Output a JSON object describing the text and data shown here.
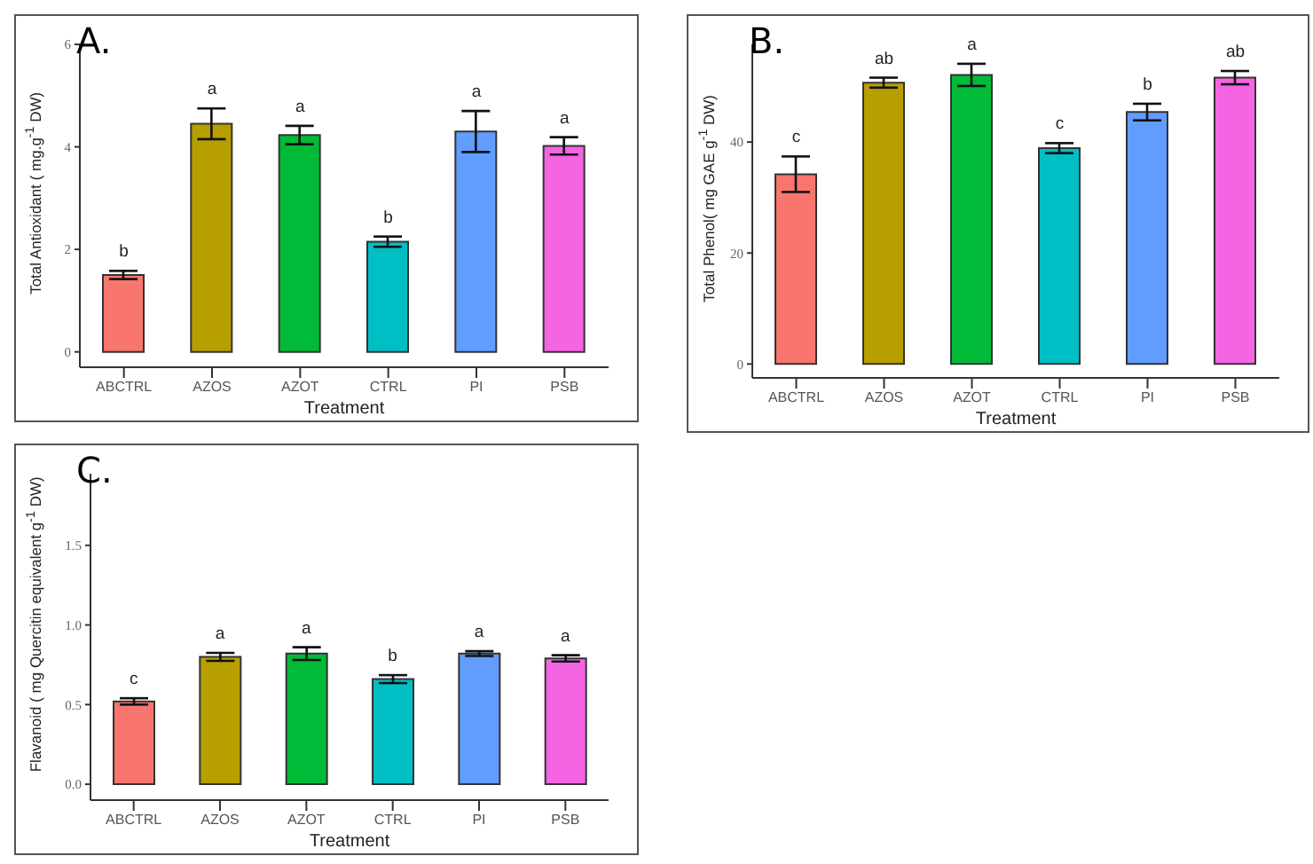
{
  "chart_data": [
    {
      "type": "bar",
      "title": "A.",
      "xlabel": "Treatment",
      "ylabel": "Total Antioxidant ( mg.g$^{-1}$ DW)",
      "categories": [
        "ABCTRL",
        "AZOS",
        "AZOT",
        "CTRL",
        "PI",
        "PSB"
      ],
      "values": [
        1.5,
        4.45,
        4.23,
        2.15,
        4.3,
        4.02
      ],
      "errors": [
        0.08,
        0.3,
        0.18,
        0.1,
        0.4,
        0.17
      ],
      "colors": [
        "#f8766d",
        "#b79f00",
        "#00ba38",
        "#00bfc4",
        "#619cff",
        "#f564e3"
      ],
      "ylim": [
        -0.3,
        6
      ],
      "yticks": [
        0,
        2,
        4,
        6
      ],
      "annotations": [
        "b",
        "a",
        "a",
        "b",
        "a",
        "a"
      ]
    },
    {
      "type": "bar",
      "title": "B.",
      "xlabel": "Treatment",
      "ylabel": "Total Phenol( mg GAE g$^{-1}$ DW)",
      "categories": [
        "ABCTRL",
        "AZOS",
        "AZOT",
        "CTRL",
        "PI",
        "PSB"
      ],
      "values": [
        34.2,
        50.7,
        52.1,
        38.9,
        45.4,
        51.6
      ],
      "errors": [
        3.2,
        0.9,
        2,
        0.9,
        1.5,
        1.2
      ],
      "colors": [
        "#f8766d",
        "#b79f00",
        "#00ba38",
        "#00bfc4",
        "#619cff",
        "#f564e3"
      ],
      "ylim": [
        -2.5,
        57.6
      ],
      "yticks": [
        0,
        20,
        40
      ],
      "annotations": [
        "c",
        "ab",
        "a",
        "c",
        "b",
        "ab"
      ]
    },
    {
      "type": "bar",
      "title": "C.",
      "xlabel": "Treatment",
      "ylabel": "Flavanoid ( mg Quercitin equivalent g$^{-1}$ DW)",
      "categories": [
        "ABCTRL",
        "AZOS",
        "AZOT",
        "CTRL",
        "PI",
        "PSB"
      ],
      "values": [
        0.52,
        0.8,
        0.82,
        0.66,
        0.82,
        0.79
      ],
      "errors": [
        0.02,
        0.025,
        0.04,
        0.025,
        0.015,
        0.02
      ],
      "colors": [
        "#f8766d",
        "#b79f00",
        "#00ba38",
        "#00bfc4",
        "#619cff",
        "#f564e3"
      ],
      "ylim": [
        -0.1,
        1.95
      ],
      "yticks": [
        {
          "value": 0,
          "label": "0.0"
        },
        0.5,
        {
          "value": 1,
          "label": "1.0"
        },
        1.5
      ],
      "annotations": [
        "c",
        "a",
        "a",
        "b",
        "a",
        "a"
      ]
    }
  ]
}
